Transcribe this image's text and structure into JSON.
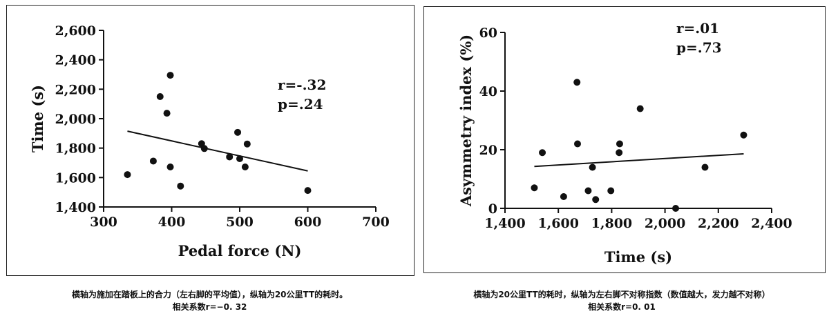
{
  "chart_data": [
    {
      "type": "scatter",
      "xlabel": "Pedal force (N)",
      "ylabel": "Time (s)",
      "xlim": [
        300,
        700
      ],
      "ylim": [
        1400,
        2600
      ],
      "xticks": [
        300,
        400,
        500,
        600,
        700
      ],
      "yticks": [
        1400,
        1600,
        1800,
        2000,
        2200,
        2400,
        2600
      ],
      "xtick_labels": [
        "300",
        "400",
        "500",
        "600",
        "700"
      ],
      "ytick_labels": [
        "1,400",
        "1,600",
        "1,800",
        "2,000",
        "2,200",
        "2,400",
        "2,600"
      ],
      "points": [
        {
          "x": 335,
          "y": 1620
        },
        {
          "x": 373,
          "y": 1712
        },
        {
          "x": 383,
          "y": 2150
        },
        {
          "x": 393,
          "y": 2037
        },
        {
          "x": 398,
          "y": 2295
        },
        {
          "x": 398,
          "y": 1672
        },
        {
          "x": 413,
          "y": 1542
        },
        {
          "x": 444,
          "y": 1830
        },
        {
          "x": 448,
          "y": 1797
        },
        {
          "x": 485,
          "y": 1740
        },
        {
          "x": 497,
          "y": 1907
        },
        {
          "x": 500,
          "y": 1728
        },
        {
          "x": 508,
          "y": 1672
        },
        {
          "x": 511,
          "y": 1828
        },
        {
          "x": 600,
          "y": 1512
        }
      ],
      "trendline": [
        {
          "x": 335,
          "y": 1915
        },
        {
          "x": 600,
          "y": 1645
        }
      ],
      "annotation": [
        "r=-.32",
        "p=.24"
      ],
      "grid": false
    },
    {
      "type": "scatter",
      "xlabel": "Time (s)",
      "ylabel": "Asymmetry index (%)",
      "xlim": [
        1400,
        2400
      ],
      "ylim": [
        0,
        60
      ],
      "xticks": [
        1400,
        1600,
        1800,
        2000,
        2200,
        2400
      ],
      "yticks": [
        0,
        20,
        40,
        60
      ],
      "xtick_labels": [
        "1,400",
        "1,600",
        "1,800",
        "2,000",
        "2,200",
        "2,400"
      ],
      "ytick_labels": [
        "0",
        "20",
        "40",
        "60"
      ],
      "points": [
        {
          "x": 1510,
          "y": 7
        },
        {
          "x": 1540,
          "y": 19
        },
        {
          "x": 1620,
          "y": 4
        },
        {
          "x": 1670,
          "y": 43
        },
        {
          "x": 1672,
          "y": 22
        },
        {
          "x": 1712,
          "y": 6
        },
        {
          "x": 1728,
          "y": 14
        },
        {
          "x": 1740,
          "y": 3
        },
        {
          "x": 1797,
          "y": 6
        },
        {
          "x": 1828,
          "y": 19
        },
        {
          "x": 1830,
          "y": 22
        },
        {
          "x": 1907,
          "y": 34
        },
        {
          "x": 2040,
          "y": 0
        },
        {
          "x": 2150,
          "y": 14
        },
        {
          "x": 2295,
          "y": 25
        }
      ],
      "trendline": [
        {
          "x": 1510,
          "y": 14.3
        },
        {
          "x": 2295,
          "y": 18.6
        }
      ],
      "annotation": [
        "r=.01",
        "p=.73"
      ],
      "grid": false
    }
  ],
  "captions": {
    "left": [
      "横轴为施加在踏板上的合力（左右脚的平均值），纵轴为20公里TT的耗时。",
      "相关系数r=−0. 32"
    ],
    "right": [
      "横轴为20公里TT的耗时，纵轴为左右脚不对称指数（数值越大，发力越不对称）",
      "相关系数r=0. 01"
    ]
  }
}
